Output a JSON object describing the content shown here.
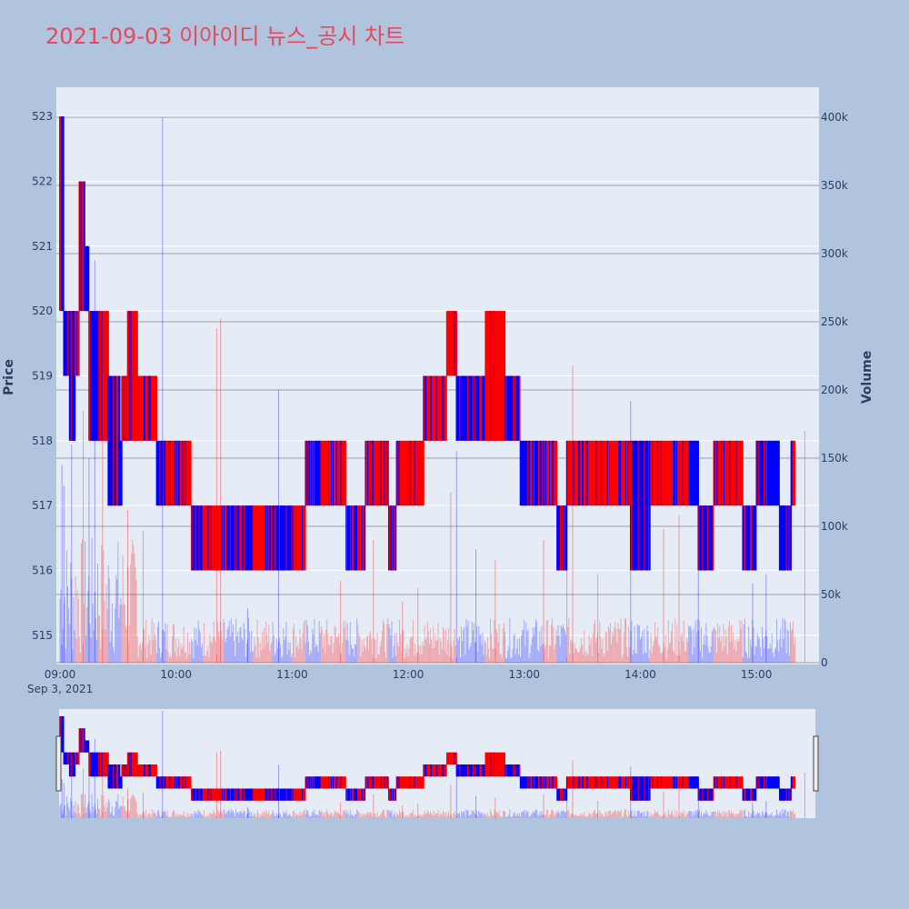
{
  "colors": {
    "background": "#b0c4de",
    "plot_bg": "#e5ecf6",
    "up": "#ff0000",
    "down": "#0000ff",
    "title": "#e8485c",
    "grid": "#ffffff",
    "volume_grid": "#808080"
  },
  "chart_data": {
    "type": "candlestick",
    "title": "2021-09-03 이아이디 뉴스_공시 차트",
    "ylabel": "Price",
    "y2label": "Volume",
    "date_label": "Sep 3, 2021",
    "x_ticks": [
      "09:00",
      "10:00",
      "11:00",
      "12:00",
      "13:00",
      "14:00",
      "15:00"
    ],
    "y_ticks": [
      "515",
      "516",
      "517",
      "518",
      "519",
      "520",
      "521",
      "522",
      "523"
    ],
    "y2_ticks": [
      "0",
      "50k",
      "100k",
      "150k",
      "200k",
      "250k",
      "300k",
      "350k",
      "400k"
    ],
    "ylim": [
      514.55,
      523.45
    ],
    "y2lim": [
      0,
      400000
    ],
    "x_range": [
      "09:00",
      "15:30"
    ],
    "rangeslider": true,
    "price_segments": [
      {
        "t": "09:00",
        "lo": 520,
        "hi": 523,
        "d": "down"
      },
      {
        "t": "09:02",
        "lo": 519,
        "hi": 520,
        "d": "down"
      },
      {
        "t": "09:05",
        "lo": 518,
        "hi": 520,
        "d": "down"
      },
      {
        "t": "09:08",
        "lo": 519,
        "hi": 520,
        "d": "up"
      },
      {
        "t": "09:10",
        "lo": 520,
        "hi": 522,
        "d": "up"
      },
      {
        "t": "09:13",
        "lo": 520,
        "hi": 521,
        "d": "down"
      },
      {
        "t": "09:15",
        "lo": 518,
        "hi": 520,
        "d": "down"
      },
      {
        "t": "09:20",
        "lo": 518,
        "hi": 520,
        "d": "up"
      },
      {
        "t": "09:25",
        "lo": 517,
        "hi": 519,
        "d": "down"
      },
      {
        "t": "09:31",
        "lo": 517,
        "hi": 518,
        "d": "down"
      },
      {
        "t": "09:32",
        "lo": 518,
        "hi": 519,
        "d": "up"
      },
      {
        "t": "09:35",
        "lo": 518,
        "hi": 520,
        "d": "up"
      },
      {
        "t": "09:40",
        "lo": 518,
        "hi": 519,
        "d": "up"
      },
      {
        "t": "09:50",
        "lo": 517,
        "hi": 518,
        "d": "down"
      },
      {
        "t": "09:55",
        "lo": 517,
        "hi": 518,
        "d": "up"
      },
      {
        "t": "10:08",
        "lo": 516,
        "hi": 517,
        "d": "down"
      },
      {
        "t": "10:14",
        "lo": 516,
        "hi": 517,
        "d": "up"
      },
      {
        "t": "10:25",
        "lo": 516,
        "hi": 517,
        "d": "down"
      },
      {
        "t": "10:40",
        "lo": 516,
        "hi": 517,
        "d": "up"
      },
      {
        "t": "10:50",
        "lo": 516,
        "hi": 517,
        "d": "down"
      },
      {
        "t": "11:00",
        "lo": 516,
        "hi": 517,
        "d": "up"
      },
      {
        "t": "11:07",
        "lo": 517,
        "hi": 518,
        "d": "down"
      },
      {
        "t": "11:15",
        "lo": 517,
        "hi": 518,
        "d": "up"
      },
      {
        "t": "11:28",
        "lo": 516,
        "hi": 517,
        "d": "down"
      },
      {
        "t": "11:34",
        "lo": 516,
        "hi": 517,
        "d": "up"
      },
      {
        "t": "11:38",
        "lo": 517,
        "hi": 518,
        "d": "up"
      },
      {
        "t": "11:50",
        "lo": 516,
        "hi": 517,
        "d": "down"
      },
      {
        "t": "11:54",
        "lo": 517,
        "hi": 518,
        "d": "up"
      },
      {
        "t": "12:08",
        "lo": 518,
        "hi": 519,
        "d": "up"
      },
      {
        "t": "12:20",
        "lo": 519,
        "hi": 520,
        "d": "up"
      },
      {
        "t": "12:25",
        "lo": 518,
        "hi": 519,
        "d": "down"
      },
      {
        "t": "12:40",
        "lo": 518,
        "hi": 520,
        "d": "up"
      },
      {
        "t": "12:50",
        "lo": 518,
        "hi": 519,
        "d": "down"
      },
      {
        "t": "12:58",
        "lo": 517,
        "hi": 518,
        "d": "down"
      },
      {
        "t": "13:10",
        "lo": 517,
        "hi": 518,
        "d": "up"
      },
      {
        "t": "13:17",
        "lo": 516,
        "hi": 517,
        "d": "down"
      },
      {
        "t": "13:22",
        "lo": 517,
        "hi": 518,
        "d": "up"
      },
      {
        "t": "13:55",
        "lo": 516,
        "hi": 518,
        "d": "down"
      },
      {
        "t": "14:05",
        "lo": 517,
        "hi": 518,
        "d": "up"
      },
      {
        "t": "14:25",
        "lo": 517,
        "hi": 518,
        "d": "down"
      },
      {
        "t": "14:30",
        "lo": 516,
        "hi": 517,
        "d": "down"
      },
      {
        "t": "14:38",
        "lo": 517,
        "hi": 518,
        "d": "up"
      },
      {
        "t": "14:53",
        "lo": 516,
        "hi": 517,
        "d": "down"
      },
      {
        "t": "15:00",
        "lo": 517,
        "hi": 518,
        "d": "down"
      },
      {
        "t": "15:12",
        "lo": 516,
        "hi": 517,
        "d": "down"
      },
      {
        "t": "15:18",
        "lo": 517,
        "hi": 518,
        "d": "up"
      }
    ],
    "volume_spikes": [
      {
        "t": "09:01",
        "v": 145000
      },
      {
        "t": "09:02",
        "v": 130000
      },
      {
        "t": "09:06",
        "v": 160000
      },
      {
        "t": "09:12",
        "v": 185000
      },
      {
        "t": "09:15",
        "v": 150000
      },
      {
        "t": "09:18",
        "v": 295000
      },
      {
        "t": "09:22",
        "v": 195000
      },
      {
        "t": "09:35",
        "v": 112000
      },
      {
        "t": "09:43",
        "v": 97000
      },
      {
        "t": "09:53",
        "v": 400000
      },
      {
        "t": "10:21",
        "v": 245000
      },
      {
        "t": "10:23",
        "v": 252000
      },
      {
        "t": "10:37",
        "v": 40000
      },
      {
        "t": "10:53",
        "v": 200000
      },
      {
        "t": "11:25",
        "v": 60000
      },
      {
        "t": "11:42",
        "v": 90000
      },
      {
        "t": "11:57",
        "v": 45000
      },
      {
        "t": "12:05",
        "v": 55000
      },
      {
        "t": "12:22",
        "v": 125000
      },
      {
        "t": "12:25",
        "v": 155000
      },
      {
        "t": "12:35",
        "v": 83000
      },
      {
        "t": "12:45",
        "v": 75000
      },
      {
        "t": "13:10",
        "v": 90000
      },
      {
        "t": "13:22",
        "v": 120000
      },
      {
        "t": "13:25",
        "v": 218000
      },
      {
        "t": "13:38",
        "v": 65000
      },
      {
        "t": "13:55",
        "v": 192000
      },
      {
        "t": "14:12",
        "v": 98000
      },
      {
        "t": "14:20",
        "v": 108000
      },
      {
        "t": "14:30",
        "v": 75000
      },
      {
        "t": "14:58",
        "v": 58000
      },
      {
        "t": "15:05",
        "v": 65000
      },
      {
        "t": "15:25",
        "v": 170000
      }
    ]
  }
}
